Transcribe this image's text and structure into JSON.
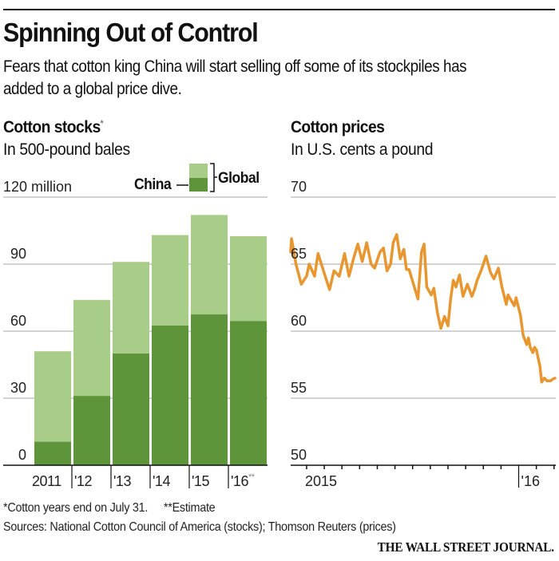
{
  "header": {
    "title": "Spinning Out of Control",
    "subtitle": "Fears that cotton king China will start selling off some of its stockpiles has added to a global price dive."
  },
  "colors": {
    "china": "#5e953a",
    "global": "#a8cd88",
    "price_line": "#e8962f",
    "gridline": "#c4c4c4",
    "axis": "#111111"
  },
  "legend": {
    "china_label": "China",
    "global_label": "Global"
  },
  "footer": {
    "note": "*Cotton years end on July 31.",
    "estimate_note": "**Estimate",
    "sources": "Sources: National Cotton Council of America (stocks); Thomson Reuters (prices)",
    "credit": "THE WALL STREET JOURNAL."
  },
  "chart_data": [
    {
      "type": "bar",
      "stacked": false,
      "overlay": true,
      "title": "Cotton stocks",
      "title_marker": "*",
      "subtitle": "In 500-pound bales",
      "ylabel": "",
      "xlabel": "",
      "ylim": [
        0,
        120
      ],
      "yticks": [
        0,
        30,
        60,
        90,
        120
      ],
      "ytick_labels": [
        "0",
        "30",
        "60",
        "90",
        "120 million"
      ],
      "categories": [
        "2011",
        "'12",
        "'13",
        "'14",
        "'15",
        "'16"
      ],
      "category_markers": [
        "",
        "",
        "",
        "",
        "",
        "**"
      ],
      "series": [
        {
          "name": "Global",
          "values": [
            51,
            74,
            91,
            103,
            112,
            102.5
          ]
        },
        {
          "name": "China",
          "values": [
            10.5,
            31,
            50,
            62.5,
            67.5,
            64.5
          ]
        }
      ],
      "grid": true,
      "legend_position": "top-right"
    },
    {
      "type": "line",
      "title": "Cotton prices",
      "subtitle": "In U.S. cents a pound",
      "ylabel": "",
      "xlabel": "",
      "ylim": [
        50,
        70
      ],
      "yticks": [
        50,
        55,
        60,
        65,
        70
      ],
      "ytick_labels": [
        "50",
        "55",
        "60",
        "65",
        "70"
      ],
      "x_labels": [
        {
          "label": "2015",
          "month_index": 1
        },
        {
          "label": "'16",
          "month_index": 12.5
        }
      ],
      "x_range_months": [
        -0.9,
        14.1
      ],
      "x_note": "months from Jan 2015 (approx.)",
      "grid": true,
      "series": [
        {
          "name": "Cotton price",
          "x": [
            -0.9,
            -0.85,
            -0.6,
            -0.3,
            0.0,
            0.15,
            0.45,
            0.65,
            1.05,
            1.3,
            1.55,
            1.85,
            2.15,
            2.4,
            2.65,
            2.9,
            3.15,
            3.4,
            3.65,
            3.85,
            4.15,
            4.35,
            4.55,
            4.75,
            4.9,
            5.1,
            5.3,
            5.5,
            5.65,
            5.8,
            6.05,
            6.3,
            6.5,
            6.65,
            6.8,
            7.05,
            7.2,
            7.4,
            7.6,
            7.8,
            8.0,
            8.15,
            8.3,
            8.45,
            8.65,
            8.85,
            9.1,
            9.35,
            9.5,
            9.65,
            9.9,
            10.15,
            10.4,
            10.6,
            10.85,
            11.05,
            11.3,
            11.4,
            11.75,
            11.85,
            12.1,
            12.25,
            12.45,
            12.55,
            12.65,
            12.8,
            12.9,
            13.0,
            13.2,
            13.3,
            13.45,
            13.6,
            13.8,
            13.9,
            14.05
          ],
          "y": [
            65.9,
            66.9,
            65.0,
            63.5,
            64.1,
            65.0,
            64.1,
            65.8,
            64.1,
            63.1,
            64.5,
            64.1,
            65.8,
            64.1,
            65.4,
            66.5,
            65.2,
            66.6,
            65.0,
            64.7,
            65.9,
            66.2,
            64.5,
            65.0,
            66.6,
            67.2,
            65.4,
            66.1,
            64.6,
            64.6,
            63.5,
            62.4,
            65.9,
            66.5,
            63.3,
            62.7,
            63.2,
            61.4,
            60.2,
            61.1,
            60.4,
            62.4,
            63.8,
            63.3,
            64.2,
            62.6,
            63.5,
            62.6,
            63.1,
            63.8,
            64.6,
            65.6,
            64.4,
            63.9,
            64.7,
            63.3,
            62.0,
            62.7,
            61.9,
            62.5,
            61.2,
            59.7,
            59.0,
            59.5,
            58.8,
            58.4,
            58.8,
            58.6,
            57.4,
            56.2,
            56.5,
            56.3,
            56.3,
            56.4,
            56.5
          ]
        }
      ]
    }
  ]
}
